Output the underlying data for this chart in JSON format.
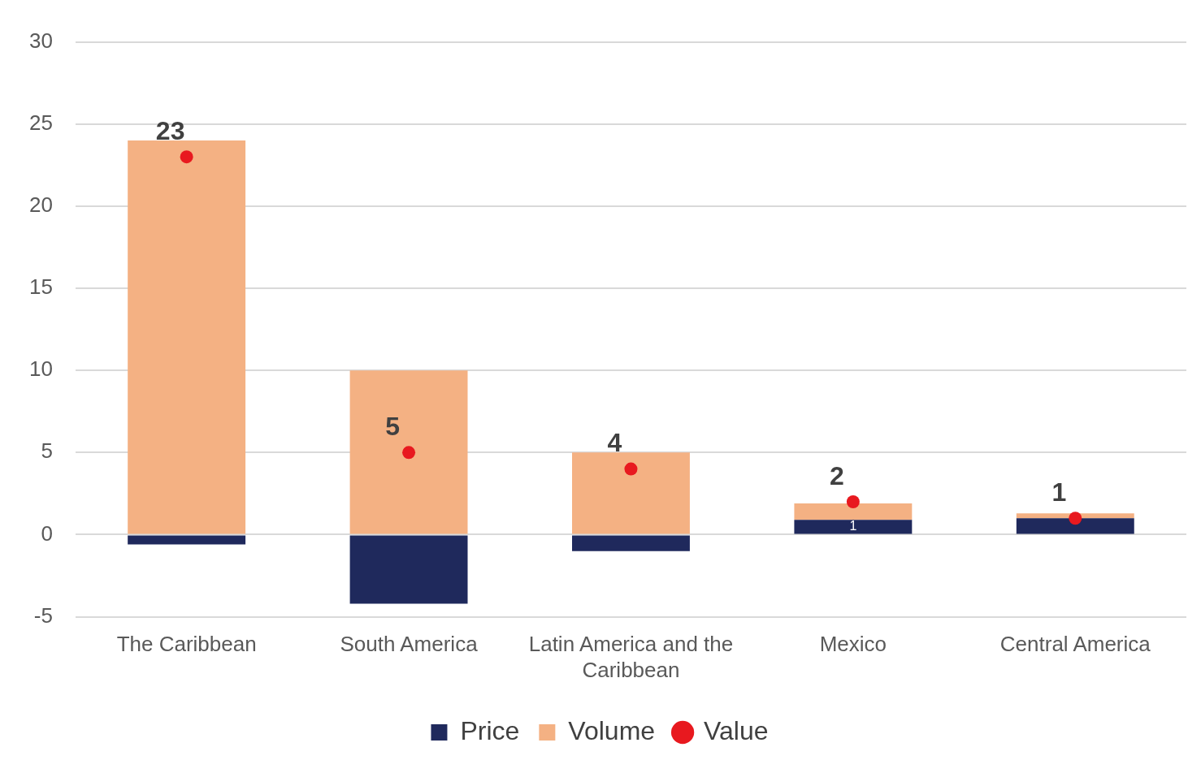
{
  "chart_data": {
    "type": "bar",
    "stacked": true,
    "categories": [
      "The Caribbean",
      "South America",
      "Latin America and the Caribbean",
      "Mexico",
      "Central America"
    ],
    "series": [
      {
        "name": "Price",
        "color": "#1f295c",
        "values": [
          -0.6,
          -4.2,
          -1.0,
          0.9,
          1.0
        ],
        "value_labels": [
          null,
          null,
          null,
          "1",
          null
        ]
      },
      {
        "name": "Volume",
        "color": "#f4b183",
        "values": [
          24,
          10,
          5,
          1.0,
          0.3
        ]
      },
      {
        "name": "Value",
        "type": "scatter",
        "color": "#e8191f",
        "values": [
          23,
          5,
          4,
          2,
          1
        ],
        "value_labels": [
          "23",
          "5",
          "4",
          "2",
          "1"
        ]
      }
    ],
    "ylim": [
      -5,
      30
    ],
    "yticks": [
      -5,
      0,
      5,
      10,
      15,
      20,
      25,
      30
    ],
    "grid": "y",
    "legend": "bottom",
    "marker": "circle"
  }
}
